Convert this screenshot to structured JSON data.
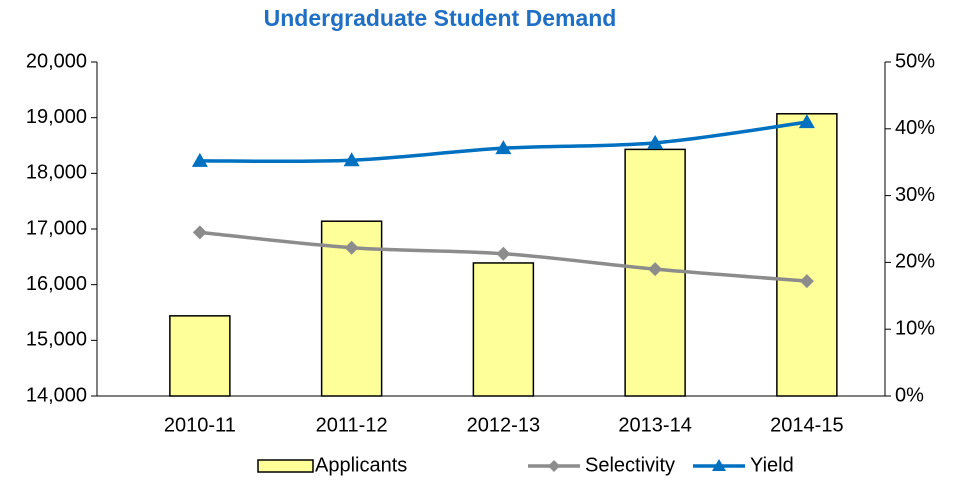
{
  "chart_data": {
    "type": "bar_line",
    "title": "Undergraduate Student Demand",
    "categories": [
      "2010-11",
      "2011-12",
      "2012-13",
      "2013-14",
      "2014-15"
    ],
    "series": [
      {
        "name": "Applicants",
        "type": "bar",
        "color": "#ffff99",
        "values": [
          15440,
          17140,
          16390,
          18430,
          19070
        ]
      },
      {
        "name": "Selectivity",
        "type": "line",
        "axis": "y2",
        "color": "#8c8c8c",
        "marker": "diamond",
        "values": [
          24.5,
          22.2,
          21.3,
          19.0,
          17.2
        ]
      },
      {
        "name": "Yield",
        "type": "line",
        "axis": "y2",
        "color": "#0070c0",
        "marker": "triangle",
        "values": [
          35.2,
          35.3,
          37.1,
          37.9,
          41.0
        ]
      }
    ],
    "ylim": [
      14000,
      20000
    ],
    "yticks": [
      {
        "value": 14000,
        "label": "14,000"
      },
      {
        "value": 15000,
        "label": "15,000"
      },
      {
        "value": 16000,
        "label": "16,000"
      },
      {
        "value": 17000,
        "label": "17,000"
      },
      {
        "value": 18000,
        "label": "18,000"
      },
      {
        "value": 19000,
        "label": "19,000"
      },
      {
        "value": 20000,
        "label": "20,000"
      }
    ],
    "y2lim": [
      0,
      50
    ],
    "y2ticks": [
      {
        "value": 0,
        "label": "0%"
      },
      {
        "value": 10,
        "label": "10%"
      },
      {
        "value": 20,
        "label": "20%"
      },
      {
        "value": 30,
        "label": "30%"
      },
      {
        "value": 40,
        "label": "40%"
      },
      {
        "value": 50,
        "label": "50%"
      }
    ],
    "legend": "bottom"
  }
}
